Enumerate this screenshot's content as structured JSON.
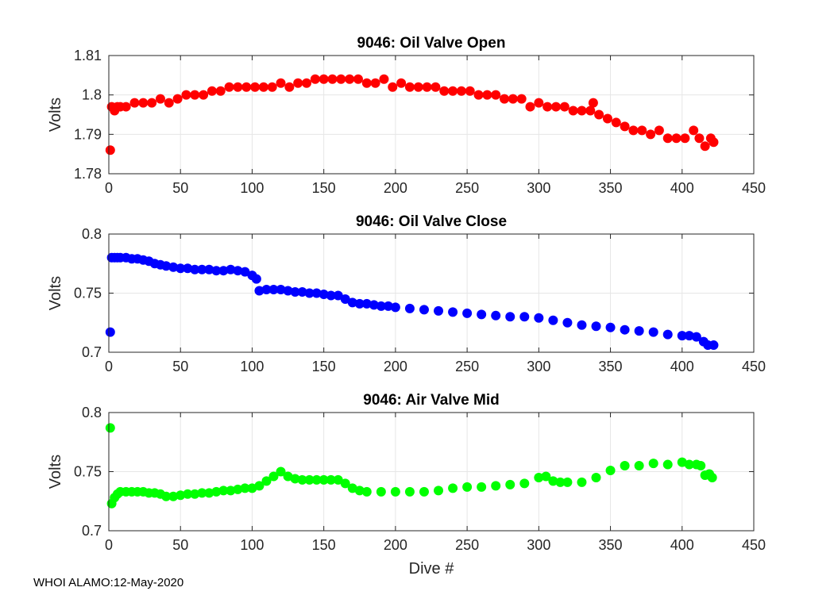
{
  "footer": "WHOI ALAMO:12-May-2020",
  "colors": {
    "open": "#ff0000",
    "close": "#0000ff",
    "air": "#00ff00",
    "grid": "#e6e6e6",
    "axis": "#262626"
  },
  "chart_data": [
    {
      "type": "scatter",
      "title": "9046: Oil Valve Open",
      "xlabel": "",
      "ylabel": "Volts",
      "xlim": [
        0,
        450
      ],
      "ylim": [
        1.78,
        1.81
      ],
      "xticks": [
        0,
        50,
        100,
        150,
        200,
        250,
        300,
        350,
        400,
        450
      ],
      "yticks": [
        1.78,
        1.79,
        1.8,
        1.81
      ],
      "xtick_labels": [
        "0",
        "50",
        "100",
        "150",
        "200",
        "250",
        "300",
        "350",
        "400",
        "450"
      ],
      "ytick_labels": [
        "1.78",
        "1.79",
        "1.8",
        "1.81"
      ],
      "grid": true,
      "series": [
        {
          "name": "Oil Valve Open",
          "color": "#ff0000",
          "x": [
            1,
            2,
            4,
            6,
            8,
            12,
            18,
            24,
            30,
            36,
            42,
            48,
            54,
            60,
            66,
            72,
            78,
            84,
            90,
            96,
            102,
            108,
            114,
            120,
            126,
            132,
            138,
            144,
            150,
            156,
            162,
            168,
            174,
            180,
            186,
            192,
            198,
            204,
            210,
            216,
            222,
            228,
            234,
            240,
            246,
            252,
            258,
            264,
            270,
            276,
            282,
            288,
            294,
            300,
            306,
            312,
            318,
            324,
            330,
            336,
            338,
            342,
            348,
            354,
            360,
            366,
            372,
            378,
            384,
            390,
            396,
            402,
            408,
            412,
            416,
            420,
            422
          ],
          "y": [
            1.786,
            1.797,
            1.796,
            1.797,
            1.797,
            1.797,
            1.798,
            1.798,
            1.798,
            1.799,
            1.798,
            1.799,
            1.8,
            1.8,
            1.8,
            1.801,
            1.801,
            1.802,
            1.802,
            1.802,
            1.802,
            1.802,
            1.802,
            1.803,
            1.802,
            1.803,
            1.803,
            1.804,
            1.804,
            1.804,
            1.804,
            1.804,
            1.804,
            1.803,
            1.803,
            1.804,
            1.802,
            1.803,
            1.802,
            1.802,
            1.802,
            1.802,
            1.801,
            1.801,
            1.801,
            1.801,
            1.8,
            1.8,
            1.8,
            1.799,
            1.799,
            1.799,
            1.797,
            1.798,
            1.797,
            1.797,
            1.797,
            1.796,
            1.796,
            1.796,
            1.798,
            1.795,
            1.794,
            1.793,
            1.792,
            1.791,
            1.791,
            1.79,
            1.791,
            1.789,
            1.789,
            1.789,
            1.791,
            1.789,
            1.787,
            1.789,
            1.788
          ]
        }
      ]
    },
    {
      "type": "scatter",
      "title": "9046: Oil Valve Close",
      "xlabel": "",
      "ylabel": "Volts",
      "xlim": [
        0,
        450
      ],
      "ylim": [
        0.7,
        0.8
      ],
      "xticks": [
        0,
        50,
        100,
        150,
        200,
        250,
        300,
        350,
        400,
        450
      ],
      "yticks": [
        0.7,
        0.75,
        0.8
      ],
      "xtick_labels": [
        "0",
        "50",
        "100",
        "150",
        "200",
        "250",
        "300",
        "350",
        "400",
        "450"
      ],
      "ytick_labels": [
        "0.7",
        "0.75",
        "0.8"
      ],
      "grid": true,
      "series": [
        {
          "name": "Oil Valve Close",
          "color": "#0000ff",
          "x": [
            1,
            2,
            4,
            6,
            8,
            12,
            16,
            20,
            24,
            28,
            32,
            36,
            40,
            45,
            50,
            55,
            60,
            65,
            70,
            75,
            80,
            85,
            90,
            95,
            100,
            103,
            105,
            110,
            115,
            120,
            125,
            130,
            135,
            140,
            145,
            150,
            155,
            160,
            165,
            170,
            175,
            180,
            185,
            190,
            195,
            200,
            210,
            220,
            230,
            240,
            250,
            260,
            270,
            280,
            290,
            300,
            310,
            320,
            330,
            340,
            350,
            360,
            370,
            380,
            390,
            400,
            405,
            410,
            415,
            418,
            422
          ],
          "y": [
            0.717,
            0.78,
            0.78,
            0.78,
            0.78,
            0.78,
            0.779,
            0.779,
            0.778,
            0.777,
            0.775,
            0.774,
            0.773,
            0.772,
            0.771,
            0.771,
            0.77,
            0.77,
            0.77,
            0.769,
            0.769,
            0.77,
            0.769,
            0.768,
            0.765,
            0.762,
            0.752,
            0.753,
            0.753,
            0.753,
            0.752,
            0.751,
            0.751,
            0.75,
            0.75,
            0.749,
            0.748,
            0.748,
            0.745,
            0.742,
            0.741,
            0.741,
            0.74,
            0.739,
            0.739,
            0.738,
            0.737,
            0.736,
            0.735,
            0.734,
            0.733,
            0.732,
            0.731,
            0.73,
            0.73,
            0.729,
            0.727,
            0.725,
            0.723,
            0.722,
            0.721,
            0.719,
            0.718,
            0.717,
            0.715,
            0.714,
            0.714,
            0.713,
            0.709,
            0.706,
            0.706
          ]
        }
      ]
    },
    {
      "type": "scatter",
      "title": "9046: Air Valve Mid",
      "xlabel": "Dive #",
      "ylabel": "Volts",
      "xlim": [
        0,
        450
      ],
      "ylim": [
        0.7,
        0.8
      ],
      "xticks": [
        0,
        50,
        100,
        150,
        200,
        250,
        300,
        350,
        400,
        450
      ],
      "yticks": [
        0.7,
        0.75,
        0.8
      ],
      "xtick_labels": [
        "0",
        "50",
        "100",
        "150",
        "200",
        "250",
        "300",
        "350",
        "400",
        "450"
      ],
      "ytick_labels": [
        "0.7",
        "0.75",
        "0.8"
      ],
      "grid": true,
      "series": [
        {
          "name": "Air Valve Mid",
          "color": "#00ff00",
          "x": [
            1,
            2,
            4,
            6,
            8,
            12,
            16,
            20,
            24,
            28,
            32,
            36,
            40,
            45,
            50,
            55,
            60,
            65,
            70,
            75,
            80,
            85,
            90,
            95,
            100,
            105,
            110,
            115,
            120,
            125,
            130,
            135,
            140,
            145,
            150,
            155,
            160,
            165,
            170,
            175,
            180,
            190,
            200,
            210,
            220,
            230,
            240,
            250,
            260,
            270,
            280,
            290,
            300,
            305,
            310,
            315,
            320,
            330,
            340,
            350,
            360,
            370,
            380,
            390,
            400,
            405,
            410,
            413,
            416,
            419,
            421
          ],
          "y": [
            0.787,
            0.723,
            0.728,
            0.731,
            0.733,
            0.733,
            0.733,
            0.733,
            0.733,
            0.732,
            0.732,
            0.731,
            0.729,
            0.729,
            0.73,
            0.731,
            0.731,
            0.732,
            0.732,
            0.733,
            0.734,
            0.734,
            0.735,
            0.736,
            0.736,
            0.738,
            0.742,
            0.746,
            0.75,
            0.746,
            0.744,
            0.743,
            0.743,
            0.743,
            0.743,
            0.743,
            0.743,
            0.74,
            0.736,
            0.734,
            0.733,
            0.733,
            0.733,
            0.733,
            0.733,
            0.734,
            0.736,
            0.737,
            0.737,
            0.738,
            0.739,
            0.74,
            0.745,
            0.746,
            0.742,
            0.741,
            0.741,
            0.741,
            0.745,
            0.751,
            0.755,
            0.755,
            0.757,
            0.756,
            0.758,
            0.756,
            0.756,
            0.755,
            0.747,
            0.748,
            0.745
          ]
        }
      ]
    }
  ]
}
